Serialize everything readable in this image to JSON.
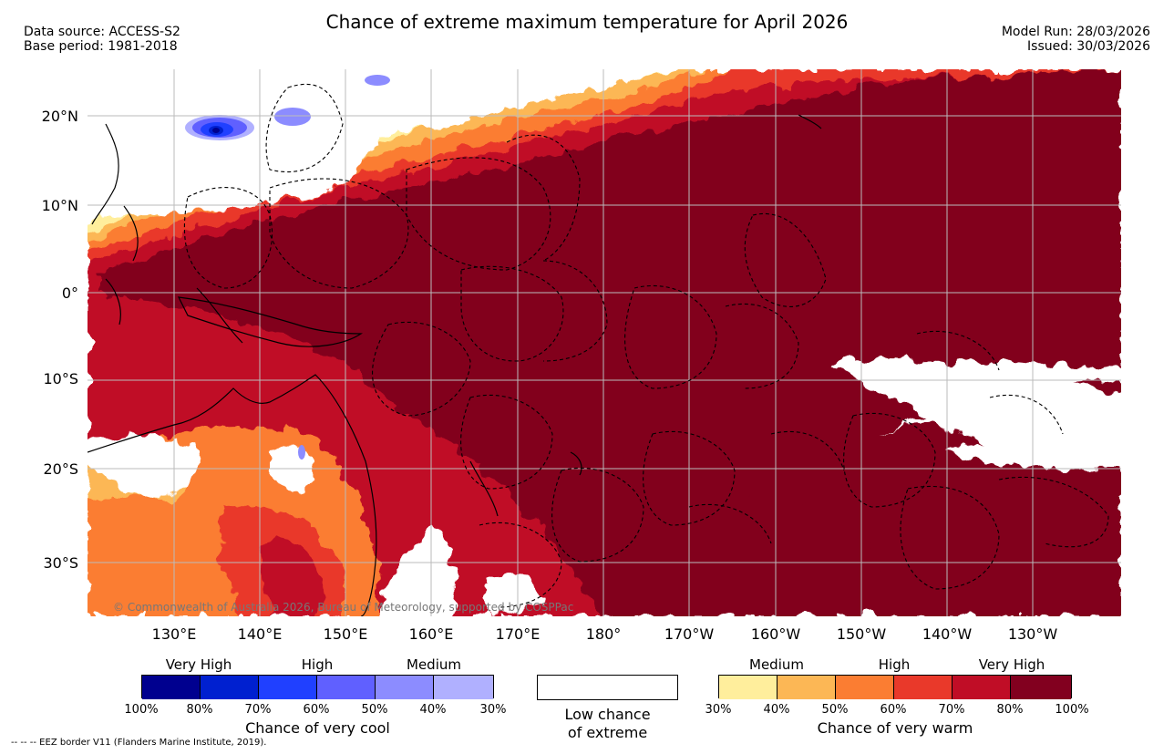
{
  "header": {
    "title": "Chance of extreme maximum temperature for April 2026",
    "data_source": "Data source: ACCESS-S2",
    "base_period": "Base period: 1981-2018",
    "model_run": "Model Run: 28/03/2026",
    "issued": "Issued: 30/03/2026"
  },
  "map": {
    "copyright": "© Commonwealth of Australia 2026, Bureau of Meteorology, supported by COSPPac",
    "lat_labels": [
      "20°N",
      "10°N",
      "0°",
      "10°S",
      "20°S",
      "30°S"
    ],
    "lon_labels": [
      "130°E",
      "140°E",
      "150°E",
      "160°E",
      "170°E",
      "180°",
      "170°W",
      "160°W",
      "150°W",
      "140°W",
      "130°W"
    ]
  },
  "legend_cool": {
    "levels": [
      "Very High",
      "High",
      "Medium"
    ],
    "pcts": [
      "100%",
      "80%",
      "70%",
      "60%",
      "50%",
      "40%",
      "30%"
    ],
    "colors": [
      "#00008f",
      "#0020d0",
      "#2040ff",
      "#6060ff",
      "#8c8cff",
      "#b0b0ff"
    ],
    "title": "Chance of very cool"
  },
  "legend_low": {
    "line1": "Low chance",
    "line2": "of extreme"
  },
  "legend_warm": {
    "levels": [
      "Medium",
      "High",
      "Very High"
    ],
    "pcts": [
      "30%",
      "40%",
      "50%",
      "60%",
      "70%",
      "80%",
      "100%"
    ],
    "colors": [
      "#ffee9c",
      "#fcb755",
      "#fb7d32",
      "#e9392a",
      "#c00d26",
      "#82001f"
    ],
    "title": "Chance of very warm"
  },
  "footer": {
    "eez_note": "-- -- -- EEZ border V11 (Flanders Marine Institute, 2019)."
  }
}
